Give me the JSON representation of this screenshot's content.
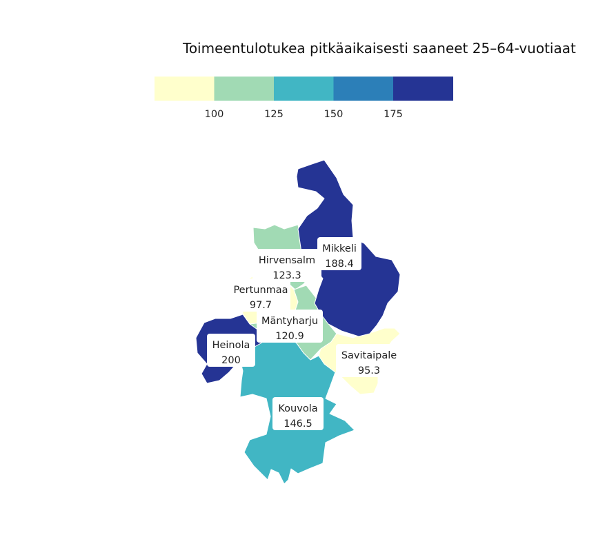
{
  "chart_data": {
    "type": "choropleth",
    "title": "Toimeentulotukea pitkäaikaisesti saaneet 25–64-vuotiaat",
    "legend": {
      "placement": "top",
      "breaks": [
        100,
        125,
        150,
        175
      ],
      "break_labels": [
        "100",
        "125",
        "150",
        "175"
      ],
      "colors": [
        "#ffffcc",
        "#a1dab4",
        "#41b6c4",
        "#2c7fb8",
        "#253494"
      ]
    },
    "regions": [
      {
        "name": "Mikkeli",
        "value": 188.4,
        "value_label": "188.4"
      },
      {
        "name": "Hirvensalm",
        "value": 123.3,
        "value_label": "123.3"
      },
      {
        "name": "Pertunmaa",
        "value": 97.7,
        "value_label": "97.7"
      },
      {
        "name": "Mäntyharju",
        "value": 120.9,
        "value_label": "120.9"
      },
      {
        "name": "Heinola",
        "value": 200,
        "value_label": "200"
      },
      {
        "name": "Savitaipale",
        "value": 95.3,
        "value_label": "95.3"
      },
      {
        "name": "Kouvola",
        "value": 146.5,
        "value_label": "146.5"
      }
    ]
  }
}
